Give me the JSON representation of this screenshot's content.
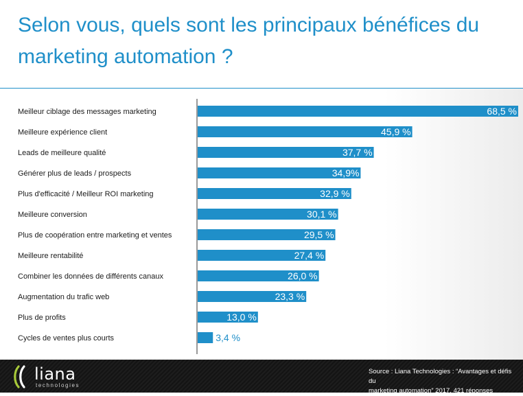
{
  "chart_data": {
    "type": "bar",
    "orientation": "horizontal",
    "title": "Selon vous, quels sont les principaux bénéfices du marketing automation ?",
    "categories": [
      "Meilleur ciblage des messages marketing",
      "Meilleure expérience client",
      "Leads de meilleure qualité",
      "Générer plus de leads / prospects",
      "Plus d'efficacité / Meilleur ROI marketing",
      "Meilleure conversion",
      "Plus de coopération entre marketing et ventes",
      "Meilleure rentabilité",
      "Combiner les données de différents canaux",
      "Augmentation du trafic web",
      "Plus de profits",
      "Cycles de ventes plus courts"
    ],
    "values": [
      68.5,
      45.9,
      37.7,
      34.9,
      32.9,
      30.1,
      29.5,
      27.4,
      26.0,
      23.3,
      13.0,
      3.4
    ],
    "data_labels": [
      "68,5 %",
      "45,9 %",
      "37,7 %",
      "34,9%",
      "32,9 %",
      "30,1 %",
      "29,5 %",
      "27,4 %",
      "26,0 %",
      "23,3 %",
      "13,0 %",
      "3,4 %"
    ],
    "xlim": [
      0,
      68.5
    ],
    "unit": "%",
    "grid": false,
    "bar_color": "#1f8fc9"
  },
  "footer": {
    "logo_name": "liana",
    "logo_sub": "technologies",
    "source_line1": "Source : Liana Technologies : “Avantages et défis du",
    "source_line2": "marketing automation” 2017, 421 réponses"
  }
}
